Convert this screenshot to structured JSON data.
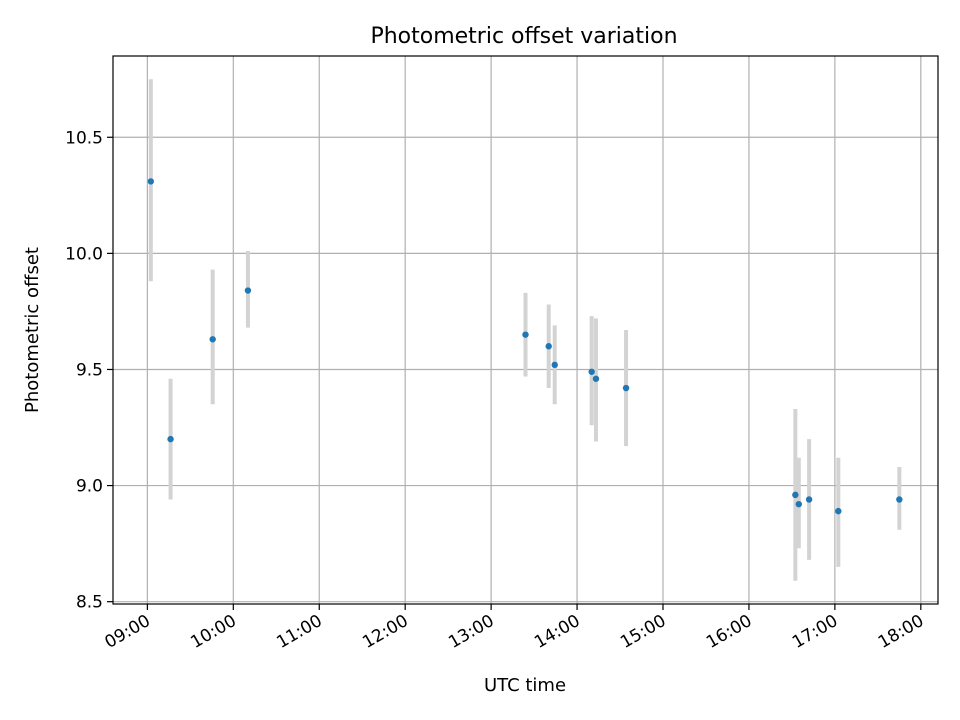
{
  "chart_data": {
    "type": "scatter",
    "title": "Photometric offset variation",
    "xlabel": "UTC time",
    "ylabel": "Photometric offset",
    "x_unit": "hours (UTC)",
    "xlim": [
      8.6,
      18.2
    ],
    "ylim": [
      8.49,
      10.85
    ],
    "x_ticks": [
      {
        "value": 9,
        "label": "09:00"
      },
      {
        "value": 10,
        "label": "10:00"
      },
      {
        "value": 11,
        "label": "11:00"
      },
      {
        "value": 12,
        "label": "12:00"
      },
      {
        "value": 13,
        "label": "13:00"
      },
      {
        "value": 14,
        "label": "14:00"
      },
      {
        "value": 15,
        "label": "15:00"
      },
      {
        "value": 16,
        "label": "16:00"
      },
      {
        "value": 17,
        "label": "17:00"
      },
      {
        "value": 18,
        "label": "18:00"
      }
    ],
    "y_ticks": [
      {
        "value": 8.5,
        "label": "8.5"
      },
      {
        "value": 9.0,
        "label": "9.0"
      },
      {
        "value": 9.5,
        "label": "9.5"
      },
      {
        "value": 10.0,
        "label": "10.0"
      },
      {
        "value": 10.5,
        "label": "10.5"
      }
    ],
    "grid": true,
    "point_color": "#1f77b4",
    "errorbar_color": "#d3d3d3",
    "points": [
      {
        "x": 9.04,
        "y": 10.31,
        "err_low": 9.88,
        "err_high": 10.75
      },
      {
        "x": 9.27,
        "y": 9.2,
        "err_low": 8.94,
        "err_high": 9.46
      },
      {
        "x": 9.76,
        "y": 9.63,
        "err_low": 9.35,
        "err_high": 9.93
      },
      {
        "x": 10.17,
        "y": 9.84,
        "err_low": 9.68,
        "err_high": 10.01
      },
      {
        "x": 13.4,
        "y": 9.65,
        "err_low": 9.47,
        "err_high": 9.83
      },
      {
        "x": 13.67,
        "y": 9.6,
        "err_low": 9.42,
        "err_high": 9.78
      },
      {
        "x": 13.74,
        "y": 9.52,
        "err_low": 9.35,
        "err_high": 9.69
      },
      {
        "x": 14.17,
        "y": 9.49,
        "err_low": 9.26,
        "err_high": 9.73
      },
      {
        "x": 14.22,
        "y": 9.46,
        "err_low": 9.19,
        "err_high": 9.72
      },
      {
        "x": 14.57,
        "y": 9.42,
        "err_low": 9.17,
        "err_high": 9.67
      },
      {
        "x": 16.54,
        "y": 8.96,
        "err_low": 8.59,
        "err_high": 9.33
      },
      {
        "x": 16.58,
        "y": 8.92,
        "err_low": 8.73,
        "err_high": 9.12
      },
      {
        "x": 16.7,
        "y": 8.94,
        "err_low": 8.68,
        "err_high": 9.2
      },
      {
        "x": 17.04,
        "y": 8.89,
        "err_low": 8.65,
        "err_high": 9.12
      },
      {
        "x": 17.75,
        "y": 8.94,
        "err_low": 8.81,
        "err_high": 9.08
      }
    ]
  }
}
